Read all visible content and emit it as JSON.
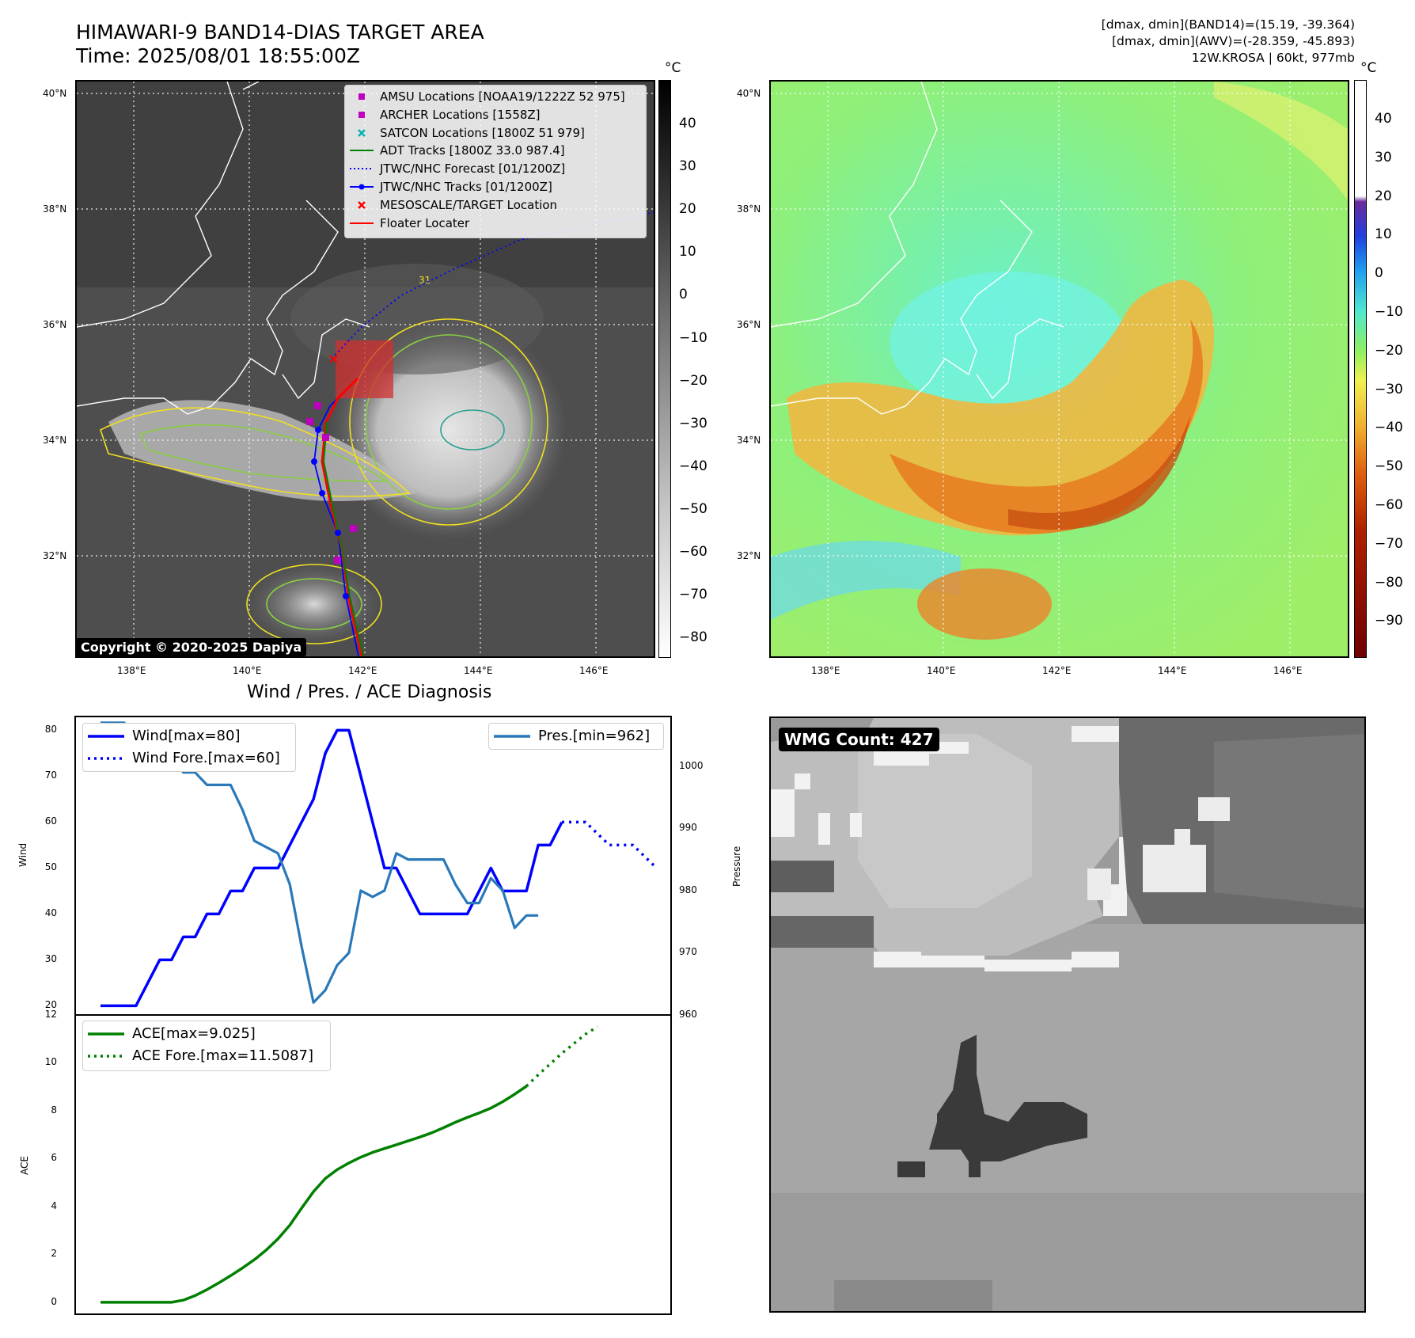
{
  "header": {
    "title_line1": "HIMAWARI-9 BAND14-DIAS TARGET AREA",
    "title_line2": "Time: 2025/08/01 18:55:00Z",
    "info_line1": "[dmax, dmin](BAND14)=(15.19, -39.364)",
    "info_line2": "[dmax, dmin](AWV)=(-28.359, -45.893)",
    "info_line3": "12W.KROSA | 60kt, 977mb"
  },
  "map": {
    "lat_labels": [
      "40°N",
      "38°N",
      "36°N",
      "34°N",
      "32°N"
    ],
    "lon_labels": [
      "138°E",
      "140°E",
      "142°E",
      "144°E",
      "146°E"
    ],
    "copyright": "Copyright © 2020-2025 Dapiya",
    "legend": [
      {
        "label": "AMSU Locations [NOAA19/1222Z 52 975]",
        "symbol": "square",
        "color": "#c000c0"
      },
      {
        "label": "ARCHER Locations [1558Z]",
        "symbol": "square",
        "color": "#c000c0"
      },
      {
        "label": "SATCON Locations [1800Z 51 979]",
        "symbol": "x",
        "color": "#00b0b0"
      },
      {
        "label": "ADT Tracks [1800Z 33.0 987.4]",
        "symbol": "line",
        "color": "#008000"
      },
      {
        "label": "JTWC/NHC Forecast [01/1200Z]",
        "symbol": "dotted",
        "color": "#0000ff"
      },
      {
        "label": "JTWC/NHC Tracks [01/1200Z]",
        "symbol": "line-dot",
        "color": "#0000ff"
      },
      {
        "label": "MESOSCALE/TARGET Location",
        "symbol": "x",
        "color": "#ff0000"
      },
      {
        "label": "Floater Locater",
        "symbol": "line",
        "color": "#ff0000"
      }
    ],
    "contour_label": "31"
  },
  "colorbar_left": {
    "unit": "°C",
    "ticks": [
      "40",
      "30",
      "20",
      "10",
      "0",
      "−10",
      "−20",
      "−30",
      "−40",
      "−50",
      "−60",
      "−70",
      "−80"
    ]
  },
  "colorbar_right": {
    "unit": "°C",
    "ticks": [
      "40",
      "30",
      "20",
      "10",
      "0",
      "−10",
      "−20",
      "−30",
      "−40",
      "−50",
      "−60",
      "−70",
      "−80",
      "−90"
    ]
  },
  "diagnosis": {
    "title": "Wind / Pres. / ACE Diagnosis",
    "wind_ylabel": "Wind",
    "pres_ylabel": "Pressure",
    "ace_ylabel": "ACE",
    "wind_ticks": [
      "80",
      "70",
      "60",
      "50",
      "40",
      "30",
      "20"
    ],
    "pres_ticks": [
      "1000",
      "990",
      "980",
      "970",
      "960"
    ],
    "ace_ticks": [
      "12",
      "10",
      "8",
      "6",
      "4",
      "2",
      "0"
    ],
    "legend_wind": "Wind[max=80]",
    "legend_wind_fore": "Wind Fore.[max=60]",
    "legend_pres": "Pres.[min=962]",
    "legend_ace": "ACE[max=9.025]",
    "legend_ace_fore": "ACE Fore.[max=11.5087]"
  },
  "wmg": {
    "label": "WMG Count: 427"
  },
  "chart_data": [
    {
      "type": "line",
      "title": "Wind / Pres. / ACE Diagnosis",
      "ylabel": "Wind",
      "ylim": [
        18,
        83
      ],
      "series": [
        {
          "name": "Wind[max=80]",
          "values": [
            20,
            20,
            20,
            20,
            25,
            30,
            30,
            35,
            35,
            40,
            40,
            45,
            45,
            50,
            50,
            50,
            55,
            60,
            65,
            75,
            80,
            80,
            70,
            60,
            50,
            50,
            45,
            40,
            40,
            40,
            40,
            40,
            45,
            50,
            45,
            45,
            45,
            55,
            55,
            60
          ]
        },
        {
          "name": "Wind Fore.[max=60]",
          "start_index": 39,
          "values": [
            60,
            60,
            60,
            57.5,
            55,
            55,
            55,
            52.5,
            50
          ]
        }
      ]
    },
    {
      "type": "line",
      "ylabel": "Pressure",
      "ylim": [
        960,
        1008
      ],
      "series": [
        {
          "name": "Pres.[min=962]",
          "values": [
            1007,
            1007,
            1007,
            1004,
            1004,
            1003,
            1003,
            999,
            999,
            997,
            997,
            997,
            993,
            988,
            987,
            986,
            981,
            971,
            962,
            964,
            968,
            970,
            980,
            979,
            980,
            986,
            985,
            985,
            985,
            985,
            981,
            978,
            978,
            982,
            980,
            974,
            976,
            976
          ]
        }
      ]
    },
    {
      "type": "line",
      "ylabel": "ACE",
      "ylim": [
        -0.5,
        12
      ],
      "series": [
        {
          "name": "ACE[max=9.025]",
          "values": [
            0,
            0,
            0,
            0,
            0,
            0,
            0,
            0.09,
            0.28,
            0.53,
            0.81,
            1.11,
            1.43,
            1.78,
            2.18,
            2.65,
            3.22,
            3.93,
            4.62,
            5.17,
            5.54,
            5.82,
            6.06,
            6.26,
            6.42,
            6.58,
            6.74,
            6.9,
            7.08,
            7.29,
            7.52,
            7.72,
            7.91,
            8.11,
            8.38,
            8.69,
            9.025
          ]
        },
        {
          "name": "ACE Fore.[max=11.5087]",
          "start_index": 36,
          "values": [
            9.025,
            9.5,
            9.95,
            10.4,
            10.8,
            11.2,
            11.5087
          ]
        }
      ]
    }
  ]
}
